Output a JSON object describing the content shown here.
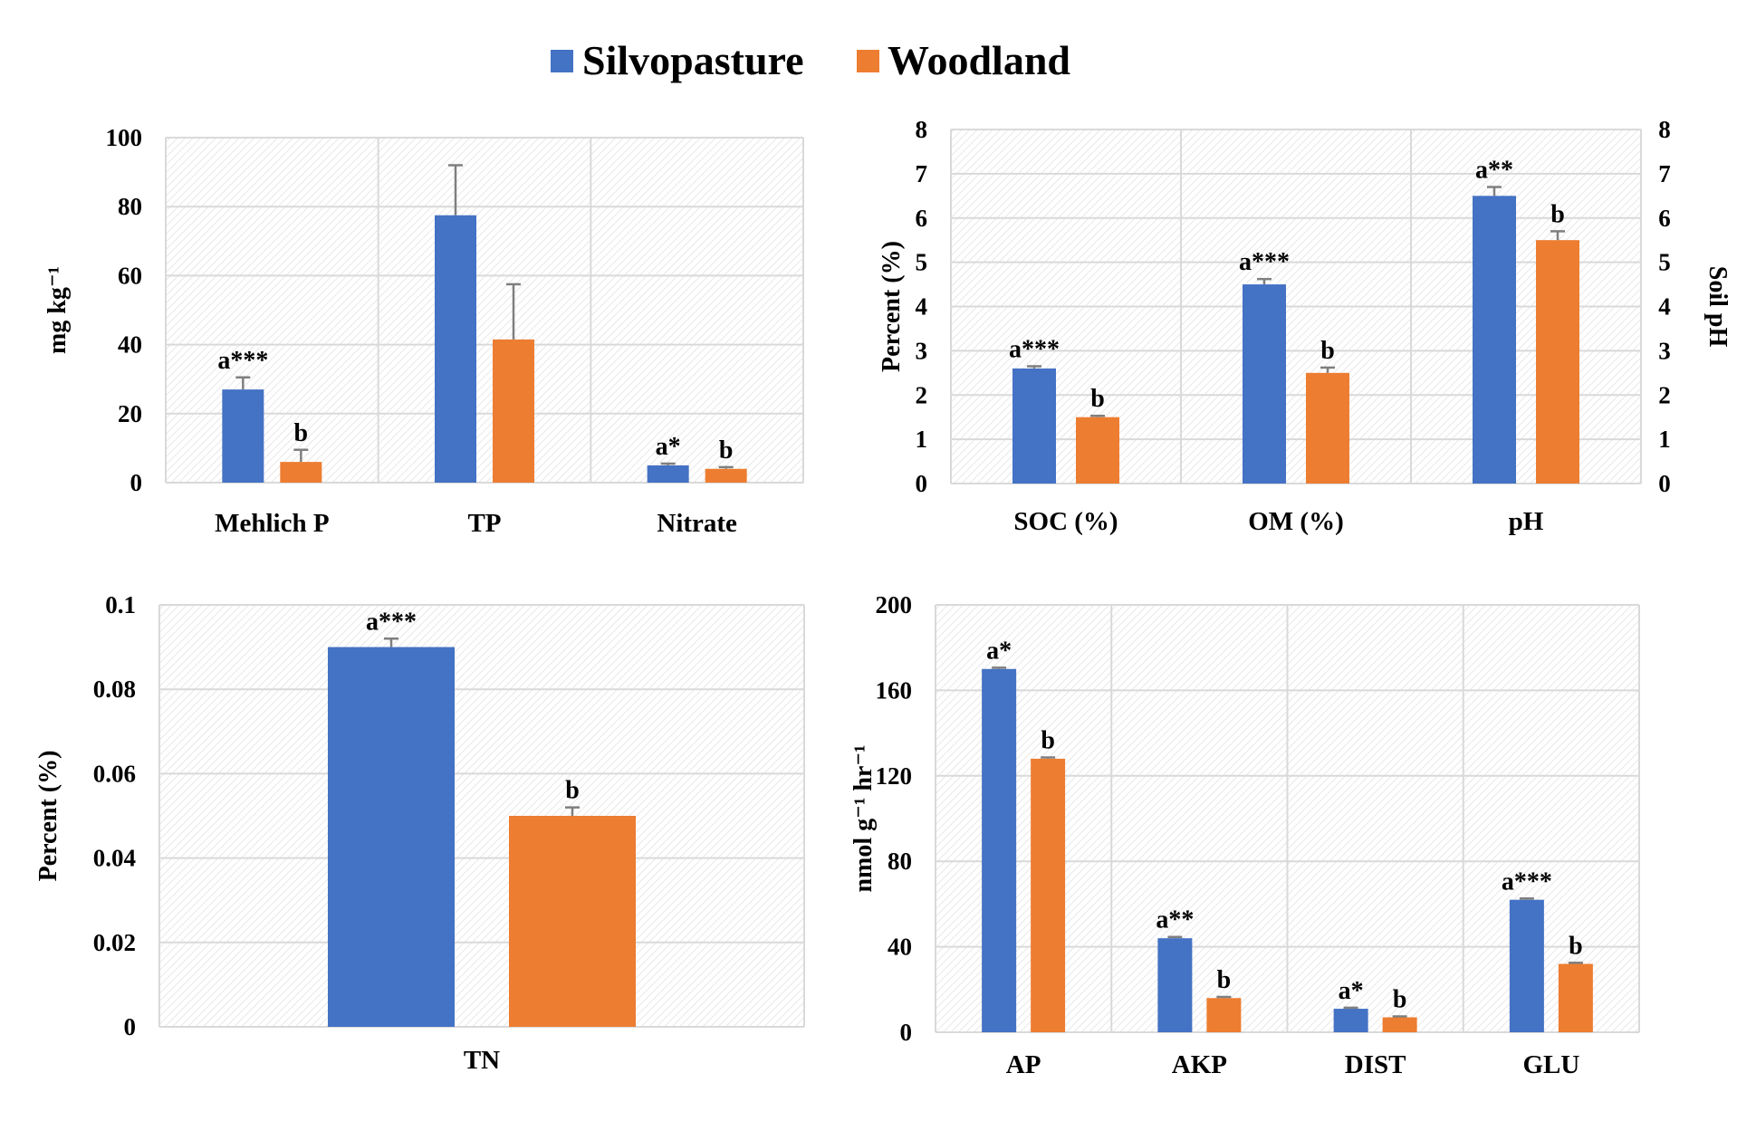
{
  "colors": {
    "silvopasture": "#4472C4",
    "woodland": "#ED7D31",
    "grid": "#D9D9D9",
    "error_bar": "#7F7F7F"
  },
  "legend": {
    "placement": "top-center",
    "items": [
      "Silvopasture",
      "Woodland"
    ]
  },
  "chart_data": [
    {
      "type": "bar",
      "categories": [
        "Mehlich P",
        "TP",
        "Nitrate"
      ],
      "series": [
        {
          "name": "Silvopasture",
          "values": [
            27,
            77.5,
            5
          ],
          "errors": [
            3.5,
            14.5,
            0.5
          ],
          "labels": [
            "a***",
            "",
            "a*"
          ]
        },
        {
          "name": "Woodland",
          "values": [
            6,
            41.5,
            4
          ],
          "errors": [
            3.5,
            16,
            0.5
          ],
          "labels": [
            "b",
            "",
            "b"
          ]
        }
      ],
      "ylabel": "mg kg⁻¹",
      "ylim": [
        0,
        100
      ],
      "yticks": [
        0,
        20,
        40,
        60,
        80,
        100
      ],
      "grid": true
    },
    {
      "type": "bar",
      "categories": [
        "SOC (%)",
        "OM (%)",
        "pH"
      ],
      "series": [
        {
          "name": "Silvopasture",
          "values": [
            2.6,
            4.5,
            6.5
          ],
          "errors": [
            0.05,
            0.12,
            0.2
          ],
          "labels": [
            "a***",
            "a***",
            "a**"
          ]
        },
        {
          "name": "Woodland",
          "values": [
            1.5,
            2.5,
            5.5
          ],
          "errors": [
            0.03,
            0.12,
            0.2
          ],
          "labels": [
            "b",
            "b",
            "b"
          ]
        }
      ],
      "ylabel": "Percent (%)",
      "y2label": "Soil pH",
      "ylim": [
        0,
        8
      ],
      "y2lim": [
        0,
        8
      ],
      "yticks": [
        0,
        1,
        2,
        3,
        4,
        5,
        6,
        7,
        8
      ],
      "grid": true
    },
    {
      "type": "bar",
      "categories": [
        "TN"
      ],
      "series": [
        {
          "name": "Silvopasture",
          "values": [
            0.09
          ],
          "errors": [
            0.002
          ],
          "labels": [
            "a***"
          ]
        },
        {
          "name": "Woodland",
          "values": [
            0.05
          ],
          "errors": [
            0.002
          ],
          "labels": [
            "b"
          ]
        }
      ],
      "ylabel": "Percent (%)",
      "ylim": [
        0,
        0.1
      ],
      "yticks": [
        0,
        0.02,
        0.04,
        0.06,
        0.08,
        0.1
      ],
      "ytick_labels": [
        "0",
        "0.02",
        "0.04",
        "0.06",
        "0.08",
        "0.1"
      ],
      "grid": true
    },
    {
      "type": "bar",
      "categories": [
        "AP",
        "AKP",
        "DIST",
        "GLU"
      ],
      "series": [
        {
          "name": "Silvopasture",
          "values": [
            170,
            44,
            11,
            62
          ],
          "errors": [
            0.6,
            0.6,
            0.5,
            0.6
          ],
          "labels": [
            "a*",
            "a**",
            "a*",
            "a***"
          ]
        },
        {
          "name": "Woodland",
          "values": [
            128,
            16,
            7,
            32
          ],
          "errors": [
            0.6,
            0.5,
            0.4,
            0.5
          ],
          "labels": [
            "b",
            "b",
            "b",
            "b"
          ]
        }
      ],
      "ylabel": "nmol g⁻¹ hr⁻¹",
      "ylim": [
        0,
        200
      ],
      "yticks": [
        0,
        40,
        80,
        120,
        160,
        200
      ],
      "grid": true
    }
  ]
}
